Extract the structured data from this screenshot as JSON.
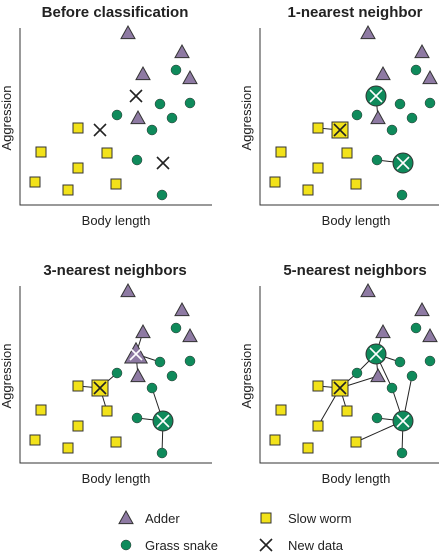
{
  "panels": [
    {
      "title": "Before classification",
      "x_label": "Body length",
      "y_label": "Aggression"
    },
    {
      "title": "1-nearest neighbor",
      "x_label": "Body length",
      "y_label": "Aggression"
    },
    {
      "title": "3-nearest neighbors",
      "x_label": "Body length",
      "y_label": "Aggression"
    },
    {
      "title": "5-nearest neighbors",
      "x_label": "Body length",
      "y_label": "Aggression"
    }
  ],
  "legend": [
    {
      "label": "Adder"
    },
    {
      "label": "Slow worm"
    },
    {
      "label": "Grass snake"
    },
    {
      "label": "New data"
    }
  ]
}
